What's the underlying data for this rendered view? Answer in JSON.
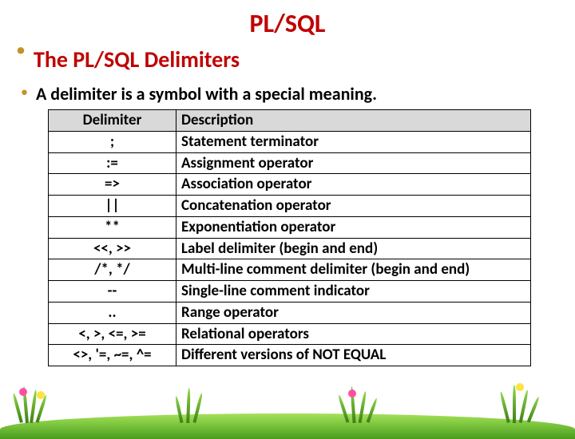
{
  "title": "PL/SQL",
  "subheading": "The PL/SQL Delimiters",
  "intro": "A delimiter is a symbol with a special meaning.",
  "table": {
    "columns": [
      "Delimiter",
      "Description"
    ],
    "rows": [
      [
        ";",
        "Statement terminator"
      ],
      [
        ":=",
        "Assignment operator"
      ],
      [
        "=>",
        "Association operator"
      ],
      [
        "||",
        "Concatenation operator"
      ],
      [
        "**",
        "Exponentiation operator"
      ],
      [
        "<<, >>",
        "Label delimiter (begin and end)"
      ],
      [
        "/*, */",
        "Multi-line comment delimiter (begin and end)"
      ],
      [
        "--",
        "Single-line comment indicator"
      ],
      [
        "..",
        "Range operator"
      ],
      [
        "<, >, <=, >=",
        "Relational operators"
      ],
      [
        "<>, '=, ~=, ^=",
        "Different versions of NOT EQUAL"
      ]
    ]
  },
  "colors": {
    "title": "#c00000",
    "bullet": "#c5912b",
    "header_bg": "#d9d9d9",
    "border": "#000000",
    "grass_dark": "#3d7f18",
    "grass_light": "#8fd94a"
  }
}
